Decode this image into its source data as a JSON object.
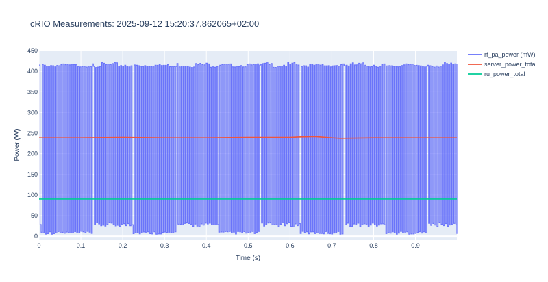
{
  "chart_data": {
    "type": "line",
    "title": "cRIO Measurements: 2025-09-12 15:20:37.862065+02:00",
    "xlabel": "Time (s)",
    "ylabel": "Power (W)",
    "xlim": [
      0,
      0.999
    ],
    "ylim": [
      -8,
      450
    ],
    "x_ticks": [
      0,
      0.1,
      0.2,
      0.3,
      0.4,
      0.5,
      0.6,
      0.7,
      0.8,
      0.9
    ],
    "x_tick_labels": [
      "0",
      "0.1",
      "0.2",
      "0.3",
      "0.4",
      "0.5",
      "0.6",
      "0.7",
      "0.8",
      "0.9"
    ],
    "y_ticks": [
      0,
      50,
      100,
      150,
      200,
      250,
      300,
      350,
      400,
      450
    ],
    "y_tick_labels": [
      "0",
      "50",
      "100",
      "150",
      "200",
      "250",
      "300",
      "350",
      "400",
      "450"
    ],
    "grid": true,
    "legend_position": "top-right",
    "plot_background": "#e5ecf6",
    "series": [
      {
        "name": "rf_pa_power (mW)",
        "color": "#636efa",
        "pattern": "square wave switching between high and low levels",
        "high_level": 418,
        "low_level": 5,
        "dense_high_intervals": [
          [
            0.0,
            0.002
          ],
          [
            0.127,
            0.224
          ],
          [
            0.325,
            0.427
          ],
          [
            0.526,
            0.624
          ],
          [
            0.727,
            0.826
          ],
          [
            0.927,
            0.999
          ]
        ],
        "dense_low_intervals": [
          [
            0.002,
            0.127
          ],
          [
            0.224,
            0.325
          ],
          [
            0.427,
            0.526
          ],
          [
            0.624,
            0.727
          ],
          [
            0.826,
            0.927
          ]
        ]
      },
      {
        "name": "server_power_total",
        "color": "#ef553b",
        "x": [
          0,
          0.1,
          0.2,
          0.3,
          0.4,
          0.5,
          0.6,
          0.62,
          0.66,
          0.7,
          0.72,
          0.8,
          0.9,
          0.999
        ],
        "values": [
          239,
          239,
          240,
          239,
          239,
          240,
          240,
          241,
          242,
          239,
          238,
          239,
          239,
          239
        ]
      },
      {
        "name": "ru_power_total",
        "color": "#00cc96",
        "x": [
          0,
          0.999
        ],
        "values": [
          90,
          90
        ]
      }
    ]
  }
}
